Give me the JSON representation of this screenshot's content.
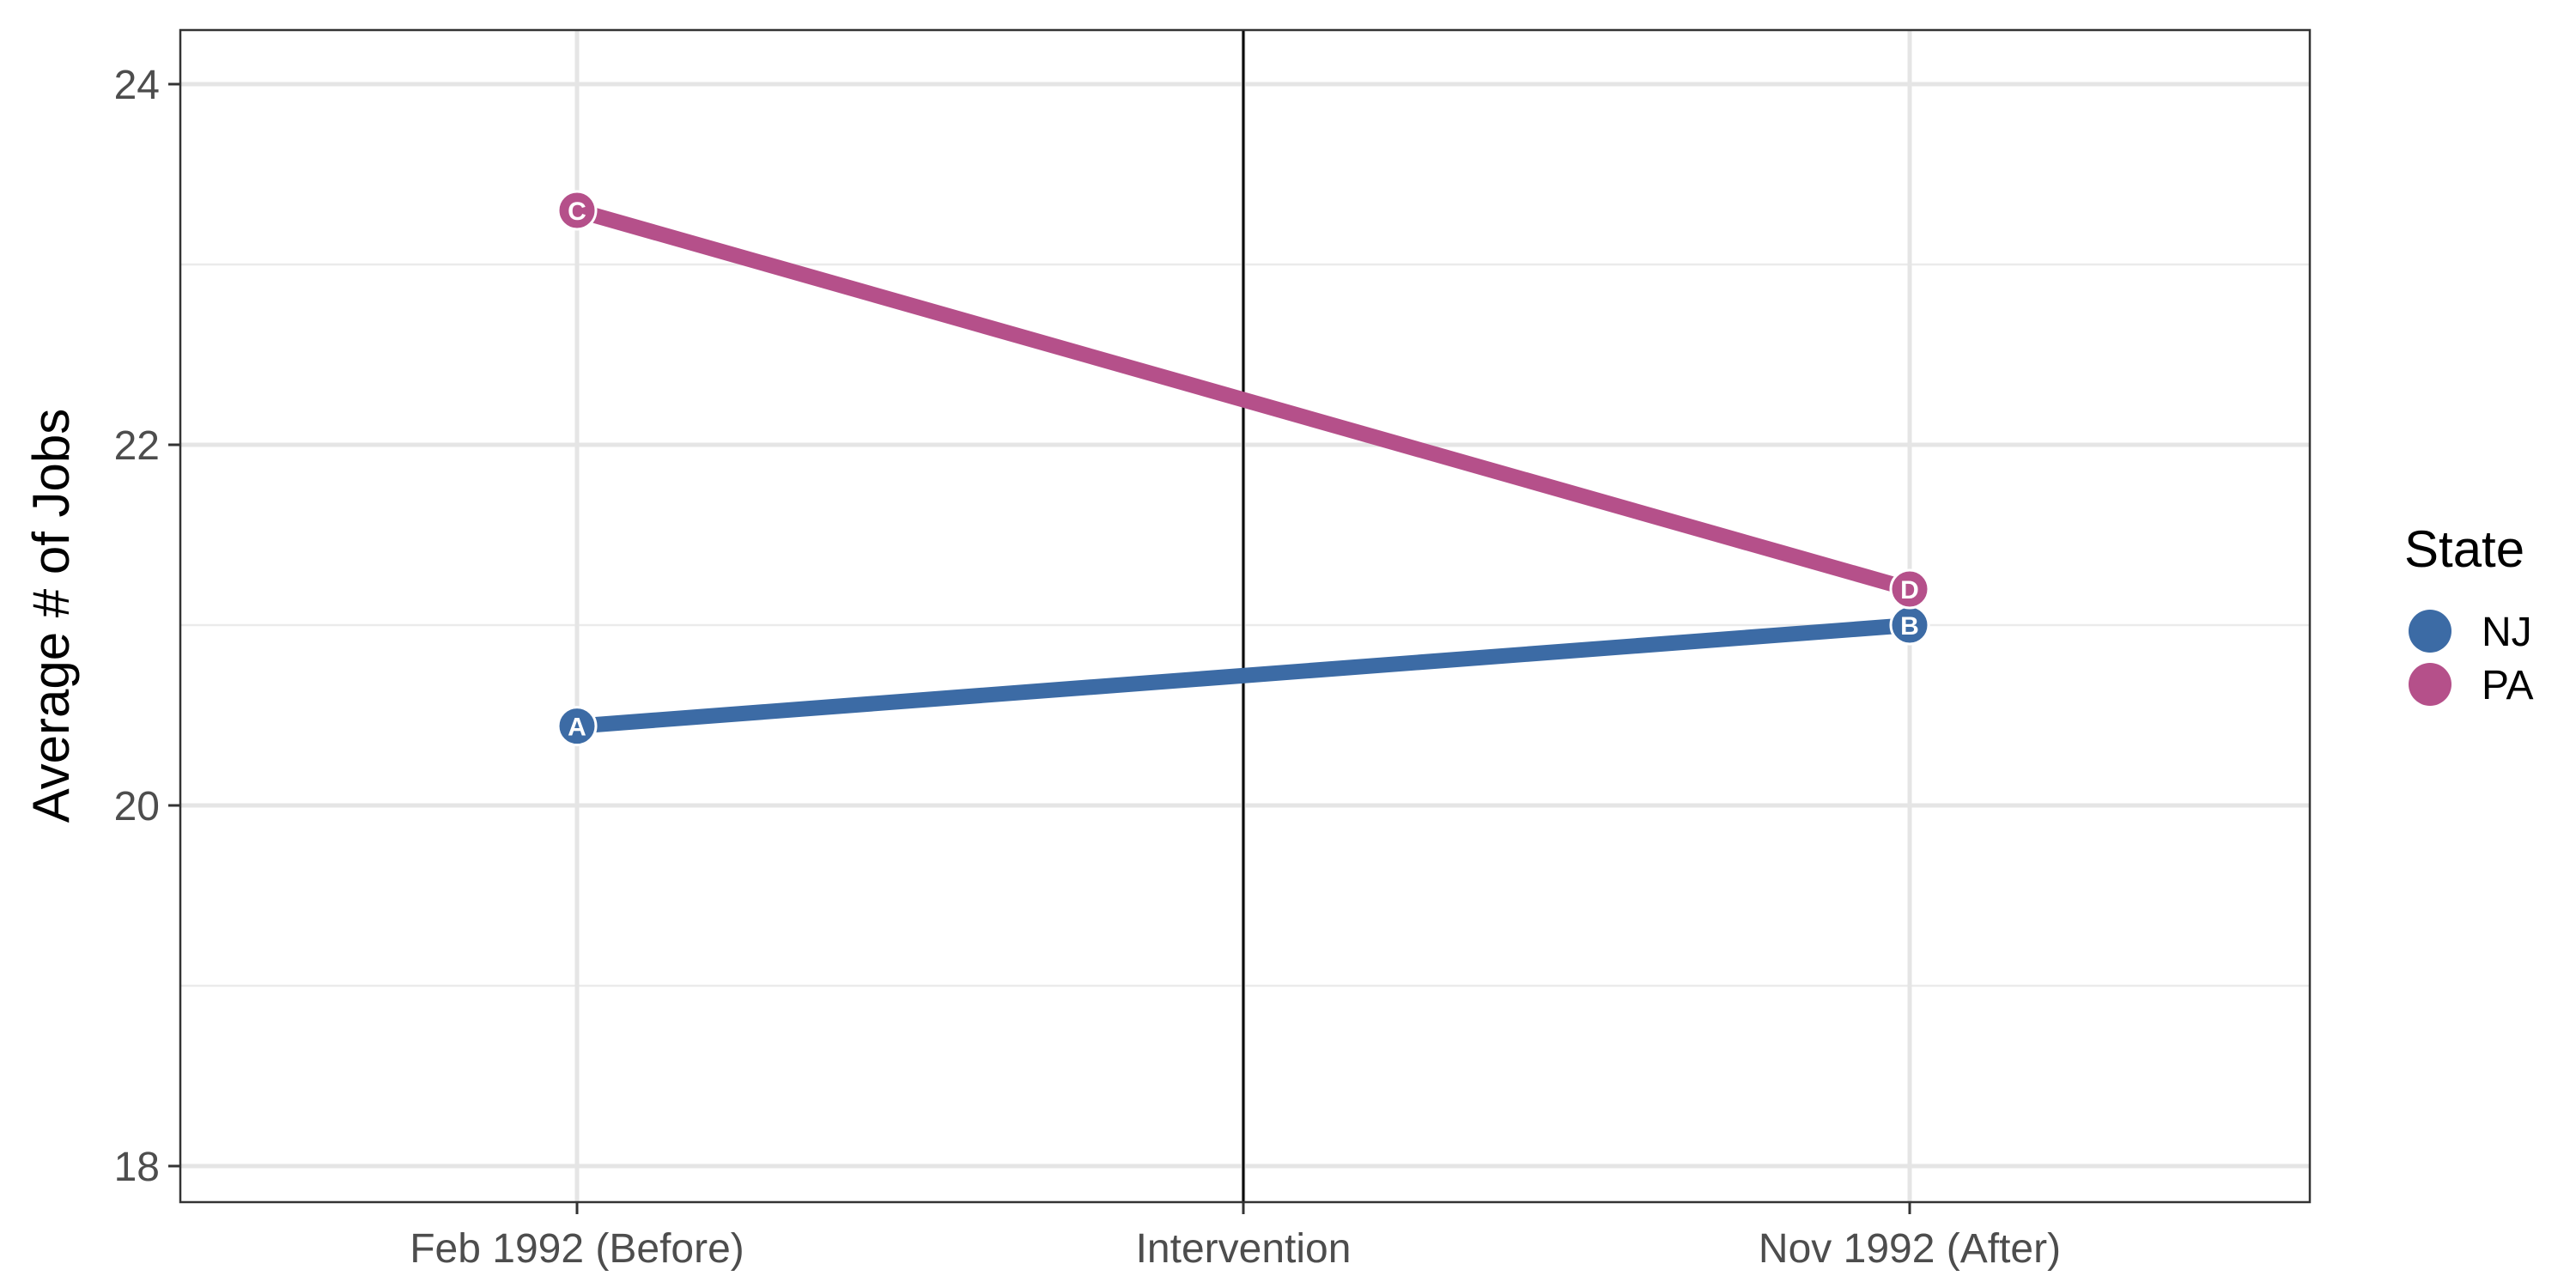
{
  "chart_data": {
    "type": "line",
    "title": "",
    "xlabel": "",
    "ylabel": "Average # of Jobs",
    "categories": [
      "Feb 1992 (Before)",
      "Intervention",
      "Nov 1992 (After)"
    ],
    "ylim": [
      17.8,
      24.3
    ],
    "yticks": [
      18,
      20,
      22,
      24
    ],
    "y_minor_ticks": [
      19,
      21,
      23
    ],
    "grid": true,
    "vline_at": "Intervention",
    "legend": {
      "title": "State",
      "placement": "right",
      "entries": [
        {
          "name": "NJ",
          "color": "#3c6ba5"
        },
        {
          "name": "PA",
          "color": "#b5508a"
        }
      ]
    },
    "series": [
      {
        "name": "NJ",
        "color": "#3c6ba5",
        "points": [
          {
            "x": "Feb 1992 (Before)",
            "y": 20.44,
            "label": "A"
          },
          {
            "x": "Nov 1992 (After)",
            "y": 21.0,
            "label": "B"
          }
        ]
      },
      {
        "name": "PA",
        "color": "#b5508a",
        "points": [
          {
            "x": "Feb 1992 (Before)",
            "y": 23.3,
            "label": "C"
          },
          {
            "x": "Nov 1992 (After)",
            "y": 21.2,
            "label": "D"
          }
        ]
      }
    ]
  }
}
